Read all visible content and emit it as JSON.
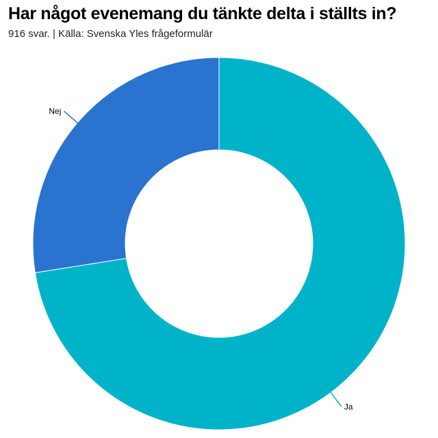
{
  "header": {
    "title": "Har något evenemang du tänkte delta i ställts in?",
    "subtitle": "916 svar. | Källa: Svenska Yles frågeformulär"
  },
  "chart_data": {
    "type": "pie",
    "donut": true,
    "title": "Har något evenemang du tänkte delta i ställts in?",
    "subtitle": "916 svar. | Källa: Svenska Yles frågeformulär",
    "legend": "none",
    "slices": [
      {
        "label": "Ja",
        "value": 72.5,
        "color": "#00b3c9"
      },
      {
        "label": "Nej",
        "value": 27.5,
        "color": "#2a74d0"
      }
    ]
  }
}
